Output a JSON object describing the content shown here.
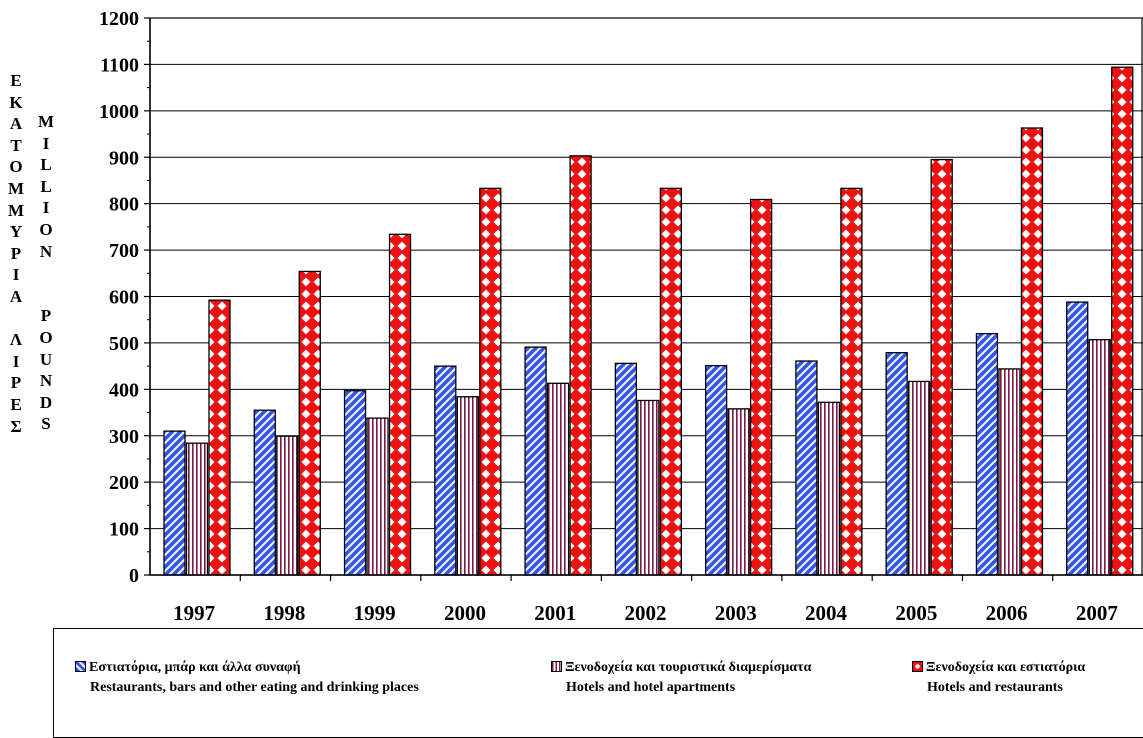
{
  "chart_data": {
    "type": "bar",
    "categories": [
      "1997",
      "1998",
      "1999",
      "2000",
      "2001",
      "2002",
      "2003",
      "2004",
      "2005",
      "2006",
      "2007"
    ],
    "series": [
      {
        "name": "Εστιατόρια, μπάρ και άλλα συναφή",
        "name_en": "Restaurants, bars and other eating and drinking places",
        "values": [
          310,
          355,
          397,
          450,
          491,
          456,
          451,
          461,
          479,
          520,
          588
        ],
        "color": "#3355ee",
        "pattern": "diagonal-stripes"
      },
      {
        "name": "Ξενοδοχεία και τουριστικά διαμερίσματα",
        "name_en": "Hotels and hotel apartments",
        "values": [
          284,
          299,
          338,
          384,
          413,
          376,
          358,
          372,
          417,
          444,
          507
        ],
        "color": "#7a1a4a",
        "pattern": "vertical-stripes"
      },
      {
        "name": "Ξενοδοχεία και εστιατόρια",
        "name_en": "Hotels and restaurants",
        "values": [
          592,
          654,
          734,
          833,
          903,
          833,
          809,
          833,
          895,
          963,
          1094
        ],
        "color": "#ee1111",
        "pattern": "diamonds"
      }
    ],
    "ylabel_gr": "ΕΚΑΤΟΜΜΥΡΙΑ ΛΙΡΕΣ",
    "ylabel_en": "MILLION POUNDS",
    "ylim": [
      0,
      1200
    ],
    "yticks": [
      "0",
      "100",
      "200",
      "300",
      "400",
      "500",
      "600",
      "700",
      "800",
      "900",
      "1000",
      "1100",
      "1200"
    ],
    "grid": true,
    "legend_position": "bottom"
  },
  "ylabel_gr_letters": [
    "Ε",
    "Κ",
    "Α",
    "Τ",
    "Ο",
    "Μ",
    "Μ",
    "Υ",
    "Ρ",
    "Ι",
    "Α",
    "",
    "Λ",
    "Ι",
    "Ρ",
    "Ε",
    "Σ"
  ],
  "ylabel_en_letters": [
    "M",
    "I",
    "L",
    "L",
    "I",
    "O",
    "N",
    "",
    "",
    "P",
    "O",
    "U",
    "N",
    "D",
    "S"
  ],
  "legend": [
    {
      "gr": "Εστιατόρια, μπάρ και άλλα συναφή",
      "en": "Restaurants, bars and other eating and drinking places"
    },
    {
      "gr": "Ξενοδοχεία και τουριστικά διαμερίσματα",
      "en": "Hotels and hotel apartments"
    },
    {
      "gr": "Ξενοδοχεία και εστιατόρια",
      "en": "Hotels and restaurants"
    }
  ]
}
